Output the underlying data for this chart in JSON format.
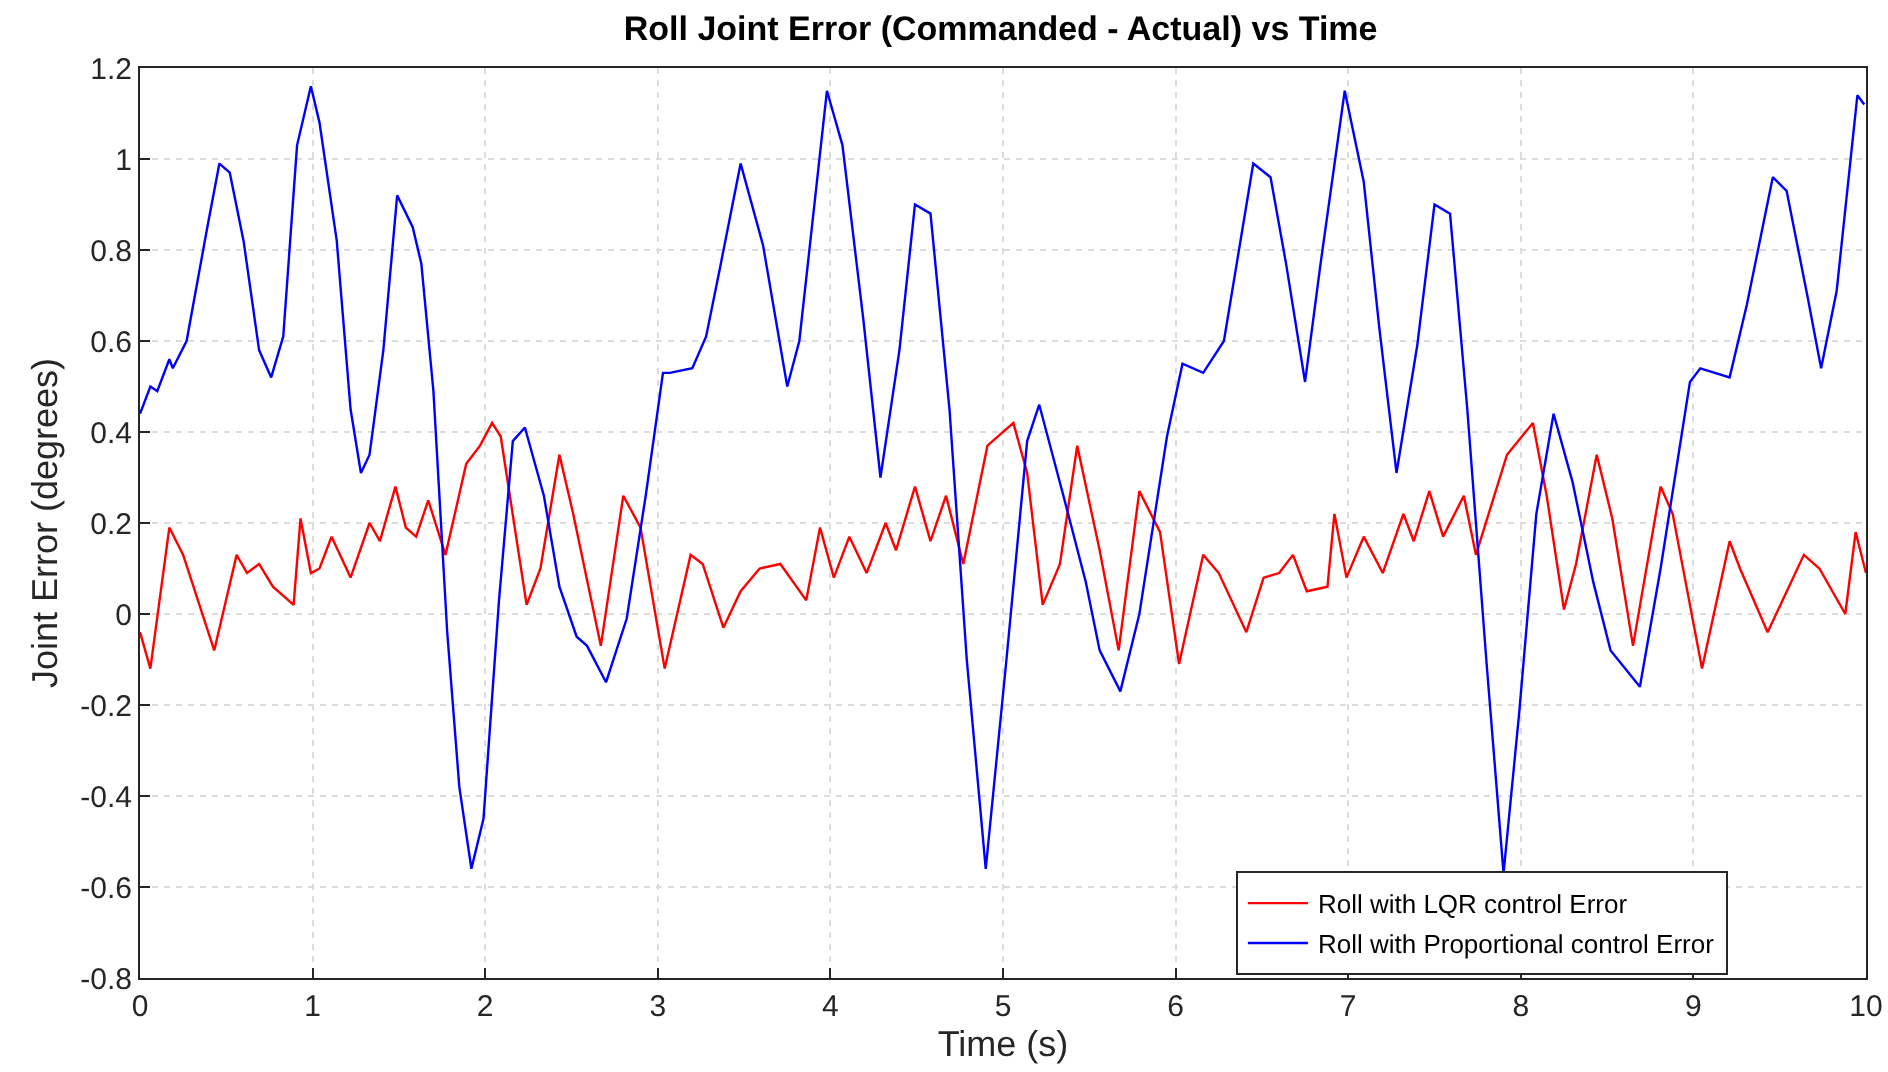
{
  "chart_data": {
    "type": "line",
    "title": "Roll Joint Error (Commanded - Actual) vs Time",
    "xlabel": "Time (s)",
    "ylabel": "Joint Error (degrees)",
    "xlim": [
      0,
      10
    ],
    "xticks": [
      0,
      1,
      2,
      3,
      4,
      5,
      6,
      7,
      8,
      9,
      10
    ],
    "ylim": [
      -0.8,
      1.2
    ],
    "yticks": [
      -0.8,
      -0.6,
      -0.4,
      -0.2,
      0,
      0.2,
      0.4,
      0.6,
      0.8,
      1,
      1.2
    ],
    "grid": true,
    "legend": "bottom right",
    "line_style": "solid",
    "marker": "none",
    "series": [
      {
        "name": "Roll with LQR control Error",
        "color": "#ff0000",
        "x": [
          0,
          0.06,
          0.17,
          0.25,
          0.43,
          0.56,
          0.62,
          0.69,
          0.77,
          0.89,
          0.93,
          0.99,
          1.04,
          1.11,
          1.22,
          1.33,
          1.39,
          1.48,
          1.54,
          1.6,
          1.67,
          1.77,
          1.89,
          1.97,
          2.04,
          2.09,
          2.24,
          2.32,
          2.43,
          2.51,
          2.67,
          2.8,
          2.9,
          3.04,
          3.19,
          3.26,
          3.38,
          3.48,
          3.59,
          3.71,
          3.86,
          3.94,
          4.02,
          4.11,
          4.21,
          4.32,
          4.38,
          4.49,
          4.58,
          4.67,
          4.77,
          4.91,
          5.06,
          5.14,
          5.23,
          5.33,
          5.43,
          5.56,
          5.67,
          5.79,
          5.91,
          6.02,
          6.16,
          6.25,
          6.41,
          6.51,
          6.6,
          6.68,
          6.76,
          6.88,
          6.92,
          6.99,
          7.09,
          7.2,
          7.32,
          7.38,
          7.47,
          7.55,
          7.67,
          7.74,
          7.92,
          8.07,
          8.15,
          8.25,
          8.32,
          8.44,
          8.53,
          8.65,
          8.81,
          8.88,
          9.05,
          9.21,
          9.27,
          9.43,
          9.64,
          9.73,
          9.88,
          9.94,
          10
        ],
        "values": [
          -0.04,
          -0.12,
          0.19,
          0.13,
          -0.08,
          0.13,
          0.09,
          0.11,
          0.06,
          0.02,
          0.21,
          0.09,
          0.1,
          0.17,
          0.08,
          0.2,
          0.16,
          0.28,
          0.19,
          0.17,
          0.25,
          0.13,
          0.33,
          0.37,
          0.42,
          0.39,
          0.02,
          0.1,
          0.35,
          0.22,
          -0.07,
          0.26,
          0.19,
          -0.12,
          0.13,
          0.11,
          -0.03,
          0.05,
          0.1,
          0.11,
          0.03,
          0.19,
          0.08,
          0.17,
          0.09,
          0.2,
          0.14,
          0.28,
          0.16,
          0.26,
          0.11,
          0.37,
          0.42,
          0.31,
          0.02,
          0.11,
          0.37,
          0.14,
          -0.08,
          0.27,
          0.18,
          -0.11,
          0.13,
          0.09,
          -0.04,
          0.08,
          0.09,
          0.13,
          0.05,
          0.06,
          0.22,
          0.08,
          0.17,
          0.09,
          0.22,
          0.16,
          0.27,
          0.17,
          0.26,
          0.13,
          0.35,
          0.42,
          0.26,
          0.01,
          0.11,
          0.35,
          0.21,
          -0.07,
          0.28,
          0.22,
          -0.12,
          0.16,
          0.1,
          -0.04,
          0.13,
          0.1,
          0,
          0.18,
          0.09
        ]
      },
      {
        "name": "Roll with Proportional control Error",
        "color": "#0000ff",
        "x": [
          0,
          0.06,
          0.1,
          0.17,
          0.19,
          0.27,
          0.39,
          0.46,
          0.52,
          0.6,
          0.69,
          0.76,
          0.83,
          0.91,
          0.99,
          1.04,
          1.14,
          1.22,
          1.28,
          1.33,
          1.41,
          1.49,
          1.58,
          1.63,
          1.7,
          1.78,
          1.85,
          1.92,
          1.99,
          2.08,
          2.16,
          2.23,
          2.34,
          2.43,
          2.53,
          2.59,
          2.7,
          2.82,
          2.93,
          3.03,
          3.07,
          3.2,
          3.28,
          3.36,
          3.48,
          3.61,
          3.75,
          3.82,
          3.98,
          4.07,
          4.19,
          4.29,
          4.4,
          4.49,
          4.58,
          4.69,
          4.79,
          4.9,
          5.02,
          5.14,
          5.21,
          5.35,
          5.48,
          5.56,
          5.68,
          5.79,
          5.95,
          6.04,
          6.16,
          6.28,
          6.45,
          6.55,
          6.64,
          6.75,
          6.84,
          6.98,
          7.09,
          7.18,
          7.28,
          7.4,
          7.5,
          7.59,
          7.69,
          7.8,
          7.9,
          7.99,
          8.09,
          8.19,
          8.3,
          8.42,
          8.52,
          8.69,
          8.81,
          8.98,
          9.04,
          9.21,
          9.31,
          9.46,
          9.54,
          9.66,
          9.74,
          9.83,
          9.95,
          9.99
        ],
        "values": [
          0.44,
          0.5,
          0.49,
          0.56,
          0.54,
          0.6,
          0.85,
          0.99,
          0.97,
          0.82,
          0.58,
          0.52,
          0.61,
          1.03,
          1.16,
          1.08,
          0.82,
          0.45,
          0.31,
          0.35,
          0.58,
          0.92,
          0.85,
          0.77,
          0.49,
          -0.04,
          -0.38,
          -0.56,
          -0.45,
          0.03,
          0.38,
          0.41,
          0.26,
          0.06,
          -0.05,
          -0.07,
          -0.15,
          -0.01,
          0.26,
          0.53,
          0.53,
          0.54,
          0.61,
          0.76,
          0.99,
          0.81,
          0.5,
          0.6,
          1.15,
          1.03,
          0.65,
          0.3,
          0.58,
          0.9,
          0.88,
          0.45,
          -0.1,
          -0.56,
          -0.1,
          0.38,
          0.46,
          0.26,
          0.07,
          -0.08,
          -0.17,
          0,
          0.39,
          0.55,
          0.53,
          0.6,
          0.99,
          0.96,
          0.77,
          0.51,
          0.77,
          1.15,
          0.95,
          0.63,
          0.31,
          0.59,
          0.9,
          0.88,
          0.45,
          -0.1,
          -0.57,
          -0.22,
          0.22,
          0.44,
          0.29,
          0.07,
          -0.08,
          -0.16,
          0.1,
          0.51,
          0.54,
          0.52,
          0.68,
          0.96,
          0.93,
          0.7,
          0.54,
          0.71,
          1.14,
          1.12
        ]
      }
    ]
  }
}
